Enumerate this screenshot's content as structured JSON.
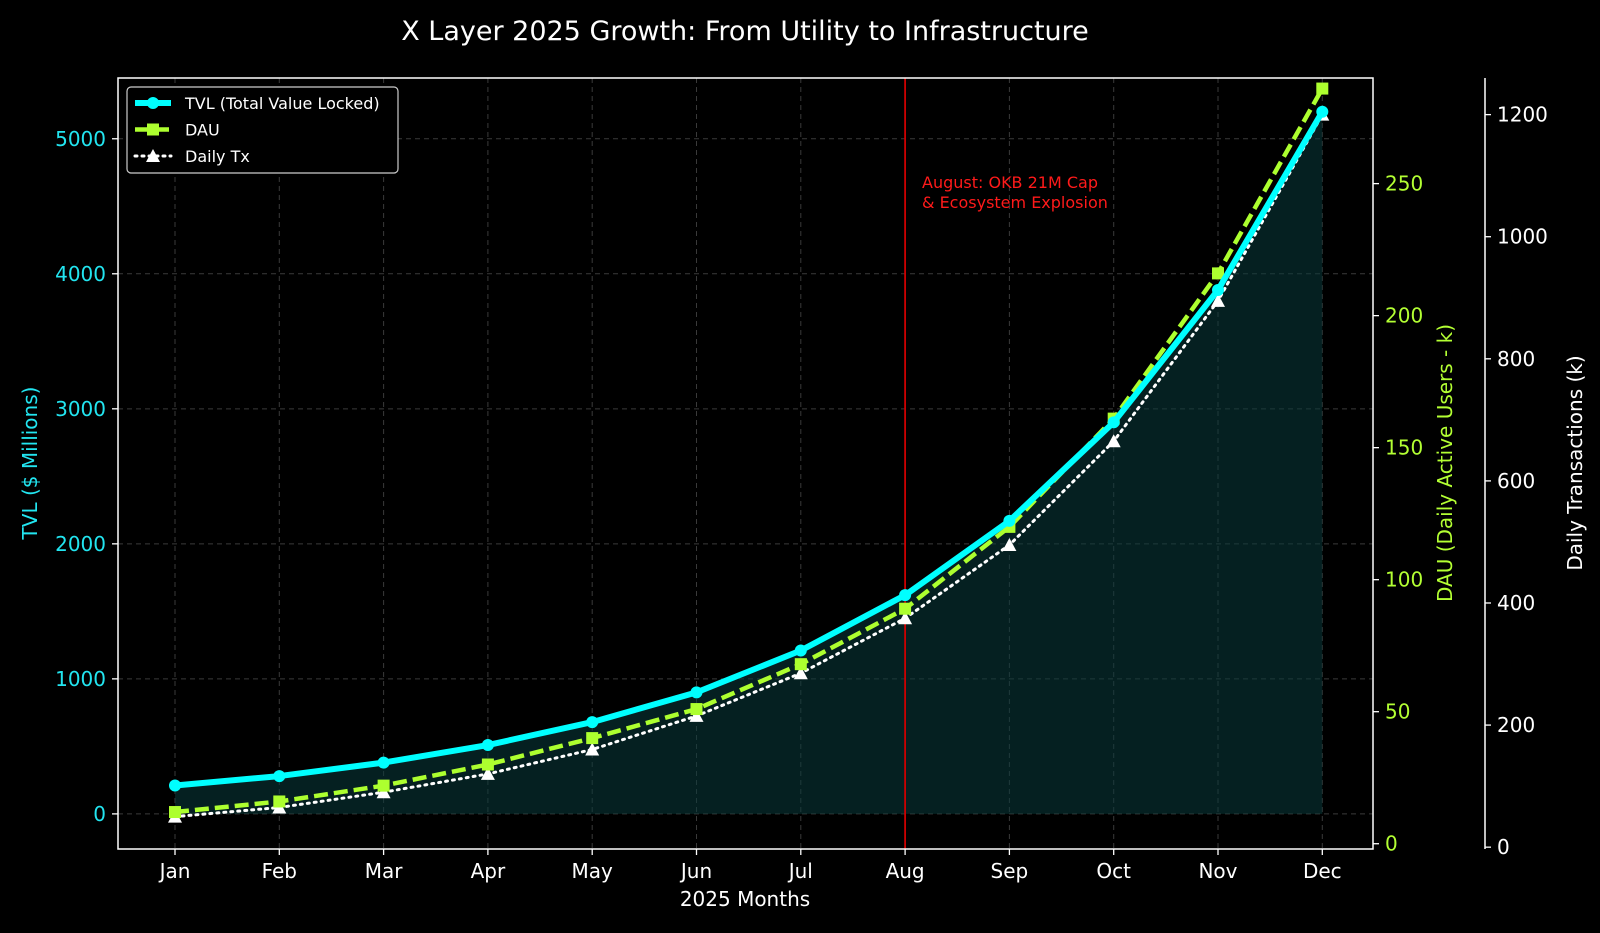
{
  "chart_data": {
    "type": "line",
    "title": "X Layer 2025 Growth: From Utility to Infrastructure",
    "xlabel": "2025 Months",
    "categories": [
      "Jan",
      "Feb",
      "Mar",
      "Apr",
      "May",
      "Jun",
      "Jul",
      "Aug",
      "Sep",
      "Oct",
      "Nov",
      "Dec"
    ],
    "axes": {
      "left": {
        "label": "TVL ($ Millions)",
        "ylim": [
          -260,
          5450
        ],
        "ticks": [
          0,
          1000,
          2000,
          3000,
          4000,
          5000
        ],
        "color": "#22e5f0"
      },
      "right1": {
        "label": "DAU (Daily Active Users - k)",
        "ylim": [
          -2,
          290
        ],
        "ticks": [
          0,
          50,
          100,
          150,
          200,
          250
        ],
        "color": "#b3ff33"
      },
      "right2": {
        "label": "Daily Transactions (k)",
        "ylim": [
          -3,
          1260
        ],
        "ticks": [
          0,
          200,
          400,
          600,
          800,
          1000,
          1200
        ],
        "color": "#ffffff"
      }
    },
    "series": [
      {
        "name": "TVL (Total Value Locked)",
        "axis": "left",
        "color": "#00ffff",
        "style": "solid",
        "marker": "circle",
        "values": [
          210,
          280,
          380,
          510,
          680,
          900,
          1210,
          1620,
          2170,
          2900,
          3880,
          5200
        ]
      },
      {
        "name": "DAU",
        "axis": "right1",
        "color": "#adff2f",
        "style": "dashed",
        "marker": "square",
        "values": [
          12,
          16,
          22,
          30,
          40,
          51,
          68,
          89,
          120,
          161,
          216,
          286
        ]
      },
      {
        "name": "Daily Tx",
        "axis": "right2",
        "color": "#ffffff",
        "style": "dotted",
        "marker": "triangle",
        "values": [
          50,
          65,
          90,
          120,
          160,
          215,
          285,
          375,
          495,
          665,
          895,
          1200
        ]
      }
    ],
    "annotation": {
      "category": "Aug",
      "line_color": "#cc0000",
      "lines": [
        "August: OKB 21M Cap",
        "& Ecosystem Explosion"
      ]
    },
    "legend_position": "top-left",
    "grid": true
  }
}
